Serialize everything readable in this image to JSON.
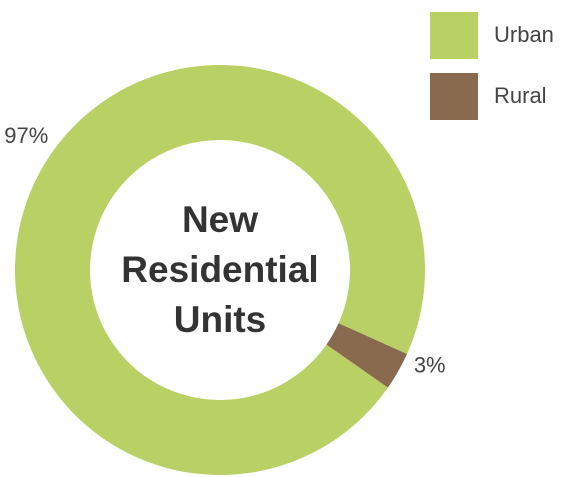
{
  "chart_data": {
    "type": "donut",
    "title": "New Residential Units",
    "categories": [
      "Urban",
      "Rural"
    ],
    "values": [
      97,
      3
    ],
    "value_labels": [
      "97%",
      "3%"
    ],
    "colors": [
      "#b8d064",
      "#8a6a4e"
    ],
    "legend": "top-right"
  }
}
